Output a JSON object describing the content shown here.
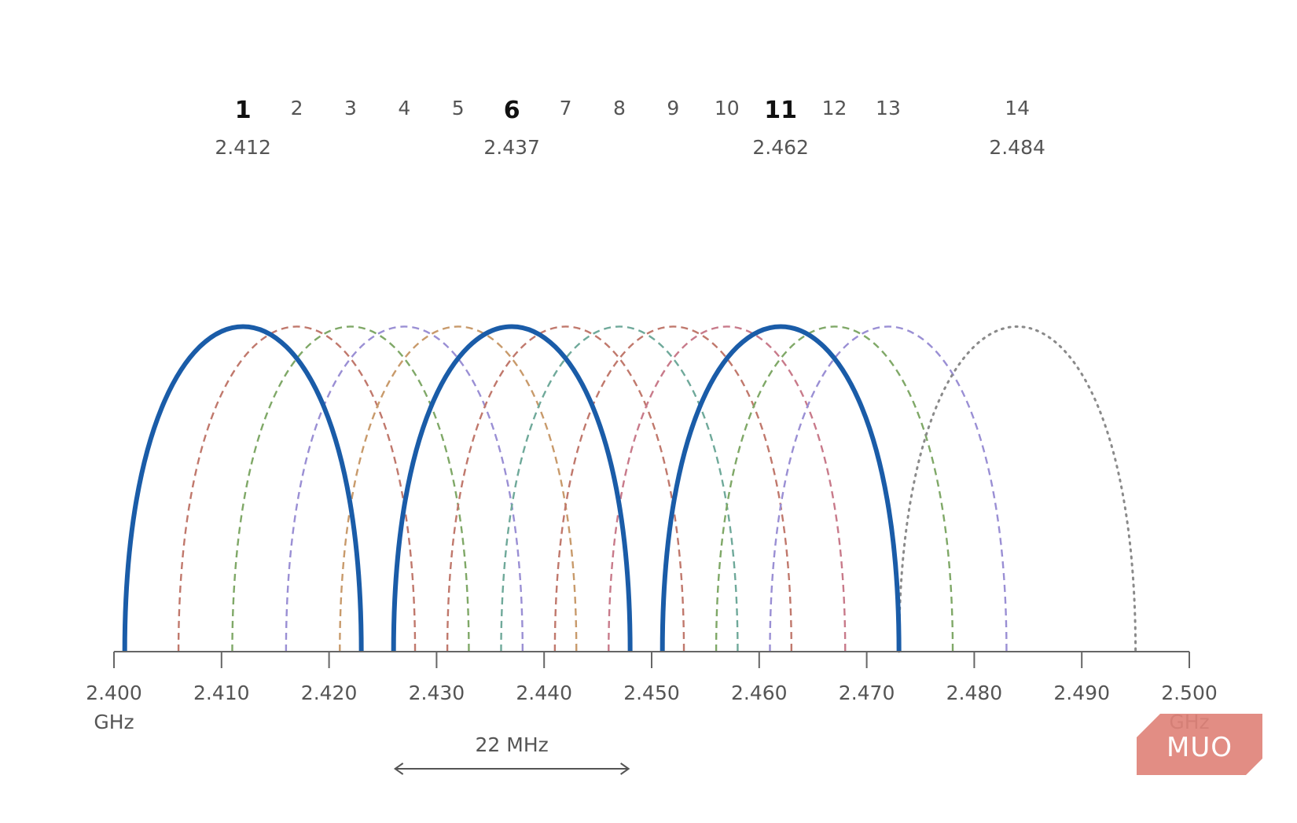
{
  "channels": [
    {
      "num": "1",
      "freq": 2.412,
      "center_label": "2.412",
      "highlight": true,
      "color": "#1a5ca8",
      "style": "solid"
    },
    {
      "num": "2",
      "freq": 2.417,
      "highlight": false,
      "color": "#c0786c",
      "style": "dashed"
    },
    {
      "num": "3",
      "freq": 2.422,
      "highlight": false,
      "color": "#7fa867",
      "style": "dashed"
    },
    {
      "num": "4",
      "freq": 2.427,
      "highlight": false,
      "color": "#9a8fd4",
      "style": "dashed"
    },
    {
      "num": "5",
      "freq": 2.432,
      "highlight": false,
      "color": "#c89a6b",
      "style": "dashed"
    },
    {
      "num": "6",
      "freq": 2.437,
      "center_label": "2.437",
      "highlight": true,
      "color": "#1a5ca8",
      "style": "solid"
    },
    {
      "num": "7",
      "freq": 2.442,
      "highlight": false,
      "color": "#c0786c",
      "style": "dashed"
    },
    {
      "num": "8",
      "freq": 2.447,
      "highlight": false,
      "color": "#6fa99a",
      "style": "dashed"
    },
    {
      "num": "9",
      "freq": 2.452,
      "highlight": false,
      "color": "#c0786c",
      "style": "dashed"
    },
    {
      "num": "10",
      "freq": 2.457,
      "highlight": false,
      "color": "#c87a8a",
      "style": "dashed"
    },
    {
      "num": "11",
      "freq": 2.462,
      "center_label": "2.462",
      "highlight": true,
      "color": "#1a5ca8",
      "style": "solid"
    },
    {
      "num": "12",
      "freq": 2.467,
      "highlight": false,
      "color": "#7fa867",
      "style": "dashed"
    },
    {
      "num": "13",
      "freq": 2.472,
      "highlight": false,
      "color": "#9a8fd4",
      "style": "dashed"
    },
    {
      "num": "14",
      "freq": 2.484,
      "center_label": "2.484",
      "highlight": false,
      "color": "#8a8a8a",
      "style": "dotted"
    }
  ],
  "channel_width_ghz": 0.022,
  "axis": {
    "min": 2.4,
    "max": 2.5,
    "ticks": [
      "2.400",
      "2.410",
      "2.420",
      "2.430",
      "2.440",
      "2.450",
      "2.460",
      "2.470",
      "2.480",
      "2.490",
      "2.500"
    ],
    "unit": "GHz"
  },
  "width_annotation": {
    "label": "22 MHz",
    "start": 2.426,
    "end": 2.448
  },
  "logo": {
    "text": "MUO",
    "color": "#e0837a"
  }
}
